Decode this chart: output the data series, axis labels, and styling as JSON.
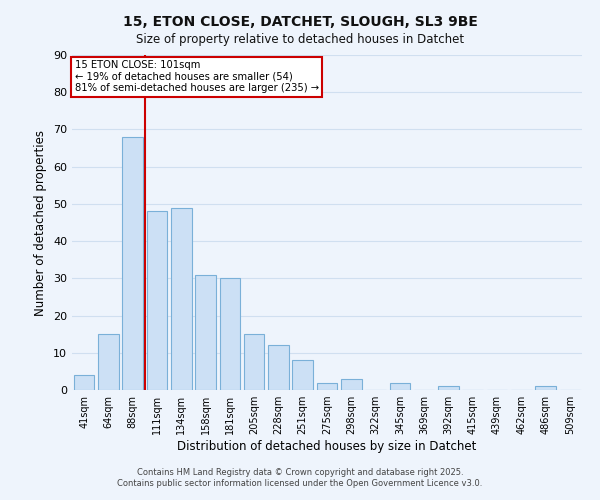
{
  "title": "15, ETON CLOSE, DATCHET, SLOUGH, SL3 9BE",
  "subtitle": "Size of property relative to detached houses in Datchet",
  "xlabel": "Distribution of detached houses by size in Datchet",
  "ylabel": "Number of detached properties",
  "bar_labels": [
    "41sqm",
    "64sqm",
    "88sqm",
    "111sqm",
    "134sqm",
    "158sqm",
    "181sqm",
    "205sqm",
    "228sqm",
    "251sqm",
    "275sqm",
    "298sqm",
    "322sqm",
    "345sqm",
    "369sqm",
    "392sqm",
    "415sqm",
    "439sqm",
    "462sqm",
    "486sqm",
    "509sqm"
  ],
  "bar_values": [
    4,
    15,
    68,
    48,
    49,
    31,
    30,
    15,
    12,
    8,
    2,
    3,
    0,
    2,
    0,
    1,
    0,
    0,
    0,
    1,
    0
  ],
  "bar_color": "#cce0f5",
  "bar_edge_color": "#7ab0d8",
  "vline_color": "#cc0000",
  "vline_x": 2.5,
  "annotation_title": "15 ETON CLOSE: 101sqm",
  "annotation_line1": "← 19% of detached houses are smaller (54)",
  "annotation_line2": "81% of semi-detached houses are larger (235) →",
  "annotation_box_facecolor": "#ffffff",
  "annotation_box_edgecolor": "#cc0000",
  "ylim": [
    0,
    90
  ],
  "yticks": [
    0,
    10,
    20,
    30,
    40,
    50,
    60,
    70,
    80,
    90
  ],
  "footer1": "Contains HM Land Registry data © Crown copyright and database right 2025.",
  "footer2": "Contains public sector information licensed under the Open Government Licence v3.0.",
  "bg_color": "#eef4fc",
  "grid_color": "#d0dff0"
}
